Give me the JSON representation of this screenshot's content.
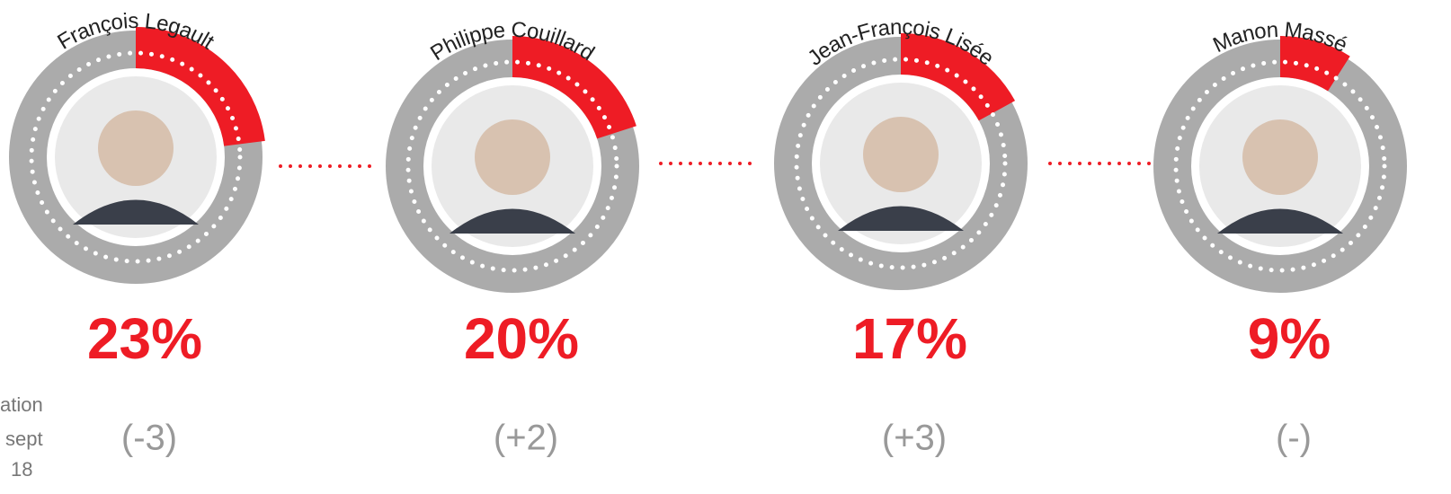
{
  "chart_data": {
    "type": "radial",
    "categories": [
      "François Legault",
      "Philippe Couillard",
      "Jean-François Lisée",
      "Manon Massé"
    ],
    "values": [
      23,
      20,
      17,
      9
    ],
    "value_labels": [
      "23%",
      "20%",
      "17%",
      "9%"
    ],
    "changes": [
      "(-3)",
      "(+2)",
      "(+3)",
      "(-)"
    ],
    "side_note": [
      "ation",
      "sept",
      "18"
    ],
    "color": "#ee1c25",
    "track_color": "#ababab"
  }
}
